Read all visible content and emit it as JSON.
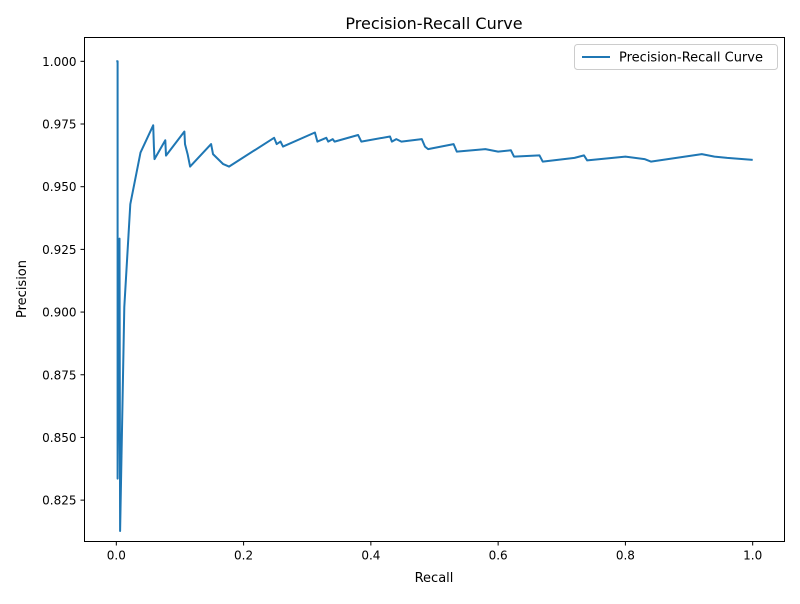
{
  "chart_data": {
    "type": "line",
    "title": "Precision-Recall Curve",
    "xlabel": "Recall",
    "ylabel": "Precision",
    "xlim": [
      -0.05,
      1.05
    ],
    "ylim": [
      0.8085,
      1.0095
    ],
    "xticks": [
      "0.0",
      "0.2",
      "0.4",
      "0.6",
      "0.8",
      "1.0"
    ],
    "xtick_values": [
      0,
      0.2,
      0.4,
      0.6,
      0.8,
      1.0
    ],
    "yticks": [
      "0.825",
      "0.850",
      "0.875",
      "0.900",
      "0.925",
      "0.950",
      "0.975",
      "1.000"
    ],
    "ytick_values": [
      0.825,
      0.85,
      0.875,
      0.9,
      0.925,
      0.95,
      0.975,
      1.0
    ],
    "grid": false,
    "legend_position": "top-right",
    "series": [
      {
        "name": "Precision-Recall Curve",
        "color": "#1f77b4",
        "x": [
          0,
          0.002,
          0.002,
          0.005,
          0.006,
          0.0126,
          0.022,
          0.038,
          0.058,
          0.059,
          0.06,
          0.077,
          0.078,
          0.107,
          0.108,
          0.112,
          0.116,
          0.149,
          0.152,
          0.16,
          0.168,
          0.177,
          0.248,
          0.252,
          0.258,
          0.262,
          0.312,
          0.316,
          0.33,
          0.333,
          0.34,
          0.343,
          0.38,
          0.385,
          0.43,
          0.433,
          0.44,
          0.448,
          0.48,
          0.485,
          0.49,
          0.53,
          0.535,
          0.58,
          0.6,
          0.62,
          0.625,
          0.665,
          0.67,
          0.72,
          0.735,
          0.74,
          0.8,
          0.83,
          0.84,
          0.92,
          0.94,
          0.96,
          1.0
        ],
        "y": [
          1.0,
          1.0,
          0.8336,
          0.9293,
          0.8127,
          0.902,
          0.943,
          0.9636,
          0.9745,
          0.966,
          0.961,
          0.9685,
          0.9624,
          0.972,
          0.967,
          0.963,
          0.958,
          0.967,
          0.963,
          0.961,
          0.959,
          0.958,
          0.9695,
          0.967,
          0.968,
          0.966,
          0.9716,
          0.968,
          0.9695,
          0.968,
          0.969,
          0.968,
          0.9706,
          0.968,
          0.97,
          0.968,
          0.969,
          0.968,
          0.969,
          0.966,
          0.965,
          0.967,
          0.964,
          0.965,
          0.964,
          0.9645,
          0.962,
          0.9625,
          0.96,
          0.9615,
          0.9625,
          0.9605,
          0.962,
          0.961,
          0.96,
          0.963,
          0.962,
          0.9615,
          0.9607
        ]
      }
    ]
  }
}
